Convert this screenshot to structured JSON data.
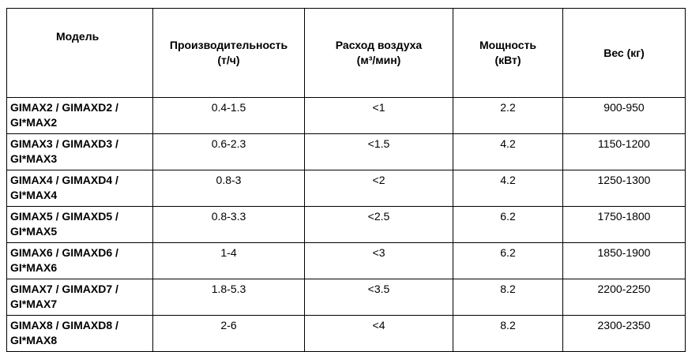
{
  "table": {
    "header": [
      [
        "Модель"
      ],
      [
        "Производительность",
        "(т/ч)"
      ],
      [
        "Расход воздуха",
        "(м³/мин)"
      ],
      [
        "Мощность",
        "(кВт)"
      ],
      [
        "Вес (кг)"
      ]
    ],
    "rows": [
      [
        "GIMAX2 / GIMAXD2 / GI*MAX2",
        "0.4-1.5",
        "<1",
        "2.2",
        "900-950"
      ],
      [
        "GIMAX3 / GIMAXD3 / GI*MAX3",
        "0.6-2.3",
        "<1.5",
        "4.2",
        "1150-1200"
      ],
      [
        "GIMAX4 / GIMAXD4 / GI*MAX4",
        "0.8-3",
        "<2",
        "4.2",
        "1250-1300"
      ],
      [
        "GIMAX5 / GIMAXD5 / GI*MAX5",
        "0.8-3.3",
        "<2.5",
        "6.2",
        "1750-1800"
      ],
      [
        "GIMAX6 / GIMAXD6 / GI*MAX6",
        "1-4",
        "<3",
        "6.2",
        "1850-1900"
      ],
      [
        "GIMAX7 / GIMAXD7 / GI*MAX7",
        "1.8-5.3",
        "<3.5",
        "8.2",
        "2200-2250"
      ],
      [
        "GIMAX8 / GIMAXD8 / GI*MAX8",
        "2-6",
        "<4",
        "8.2",
        "2300-2350"
      ]
    ]
  }
}
